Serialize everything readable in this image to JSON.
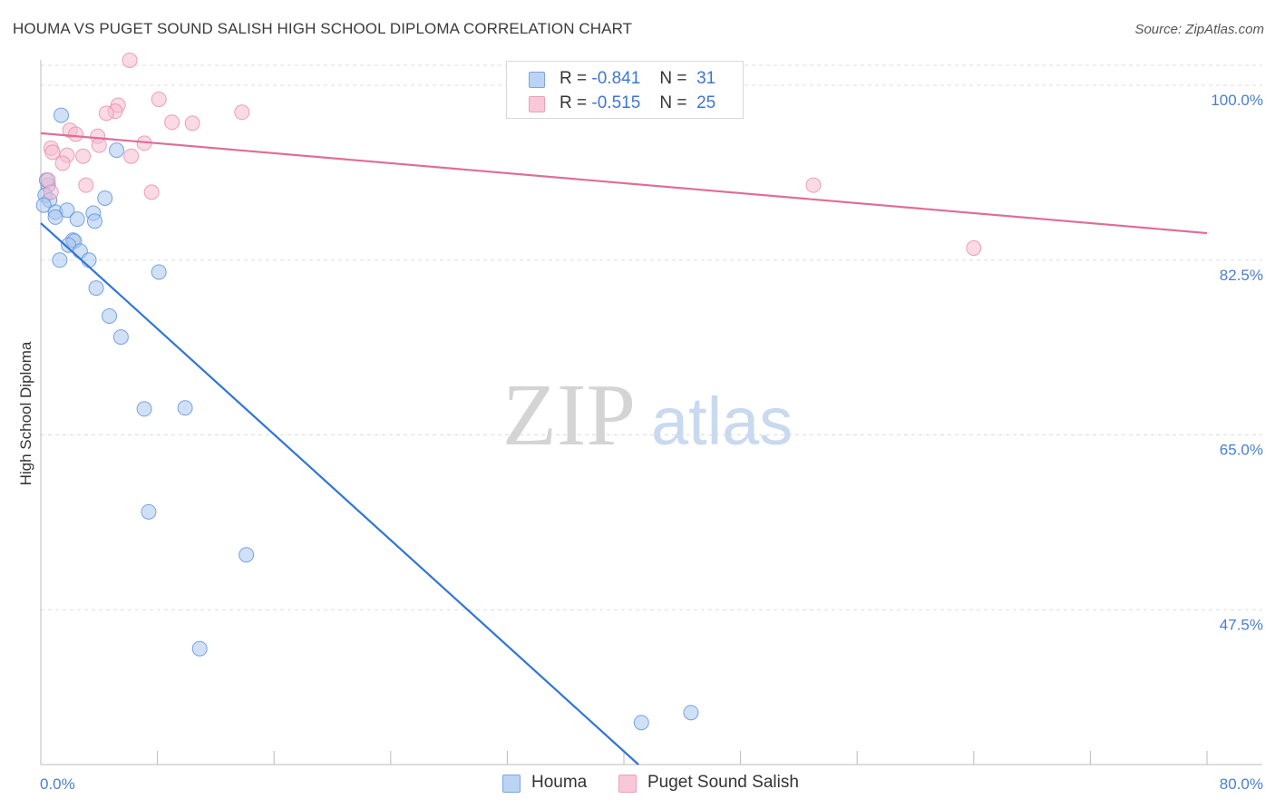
{
  "header": {
    "title": "HOUMA VS PUGET SOUND SALISH HIGH SCHOOL DIPLOMA CORRELATION CHART",
    "source": "Source: ZipAtlas.com"
  },
  "watermark": {
    "zip": "ZIP",
    "atlas": "atlas"
  },
  "legend": {
    "houma": {
      "r_label": "R =",
      "r_value": "-0.841",
      "n_label": "N =",
      "n_value": "31"
    },
    "puget": {
      "r_label": "R =",
      "r_value": "-0.515",
      "n_label": "N =",
      "n_value": "25"
    }
  },
  "bottom_legend": {
    "houma": "Houma",
    "puget": "Puget Sound Salish"
  },
  "colors": {
    "houma_fill": "#aac8f0",
    "houma_stroke": "#5b8fd8",
    "houma_line": "#2f76d6",
    "puget_fill": "#f6bcd0",
    "puget_stroke": "#e88aaa",
    "puget_line": "#e06d97",
    "grid": "#dddddd",
    "tick_text": "#4a7fcf"
  },
  "chart_data": {
    "type": "scatter",
    "title": "HOUMA VS PUGET SOUND SALISH HIGH SCHOOL DIPLOMA CORRELATION CHART",
    "xlabel": "",
    "ylabel": "High School Diploma",
    "xlim": [
      0,
      80
    ],
    "ylim": [
      32,
      102
    ],
    "x_tick_labels": [
      "0.0%",
      "80.0%"
    ],
    "y_ticks": [
      100.0,
      82.5,
      65.0,
      47.5
    ],
    "y_tick_labels": [
      "100.0%",
      "82.5%",
      "65.0%",
      "47.5%"
    ],
    "legend_position": "top-center",
    "series": [
      {
        "name": "Houma",
        "r": -0.841,
        "n": 31,
        "points": [
          [
            1.4,
            97.0
          ],
          [
            0.5,
            90.0
          ],
          [
            0.3,
            89.0
          ],
          [
            0.6,
            88.5
          ],
          [
            0.2,
            88.0
          ],
          [
            1.0,
            87.3
          ],
          [
            1.8,
            87.5
          ],
          [
            3.6,
            87.2
          ],
          [
            1.0,
            86.8
          ],
          [
            2.5,
            86.6
          ],
          [
            5.2,
            93.5
          ],
          [
            3.7,
            86.4
          ],
          [
            4.4,
            88.7
          ],
          [
            2.2,
            84.5
          ],
          [
            2.3,
            84.4
          ],
          [
            1.9,
            84.0
          ],
          [
            2.7,
            83.4
          ],
          [
            1.3,
            82.5
          ],
          [
            3.3,
            82.5
          ],
          [
            8.1,
            81.3
          ],
          [
            3.8,
            79.7
          ],
          [
            4.7,
            76.9
          ],
          [
            5.5,
            74.8
          ],
          [
            7.1,
            67.6
          ],
          [
            9.9,
            67.7
          ],
          [
            7.4,
            57.3
          ],
          [
            14.1,
            53.0
          ],
          [
            10.9,
            43.6
          ],
          [
            41.2,
            36.2
          ],
          [
            44.6,
            37.2
          ],
          [
            0.4,
            90.5
          ]
        ],
        "trendline": {
          "x": [
            0,
            41.0
          ],
          "y": [
            86.2,
            32.0
          ]
        }
      },
      {
        "name": "Puget Sound Salish",
        "r": -0.515,
        "n": 25,
        "points": [
          [
            6.1,
            102.5
          ],
          [
            8.1,
            98.6
          ],
          [
            5.3,
            98.0
          ],
          [
            5.1,
            97.4
          ],
          [
            4.5,
            97.2
          ],
          [
            13.8,
            97.3
          ],
          [
            9.0,
            96.3
          ],
          [
            10.4,
            96.2
          ],
          [
            2.0,
            95.5
          ],
          [
            2.4,
            95.1
          ],
          [
            3.9,
            94.9
          ],
          [
            7.1,
            94.2
          ],
          [
            4.0,
            94.0
          ],
          [
            0.7,
            93.7
          ],
          [
            0.8,
            93.3
          ],
          [
            1.8,
            93.0
          ],
          [
            2.9,
            92.9
          ],
          [
            6.2,
            92.9
          ],
          [
            1.5,
            92.2
          ],
          [
            0.5,
            90.5
          ],
          [
            0.7,
            89.3
          ],
          [
            3.1,
            90.0
          ],
          [
            7.6,
            89.3
          ],
          [
            53.0,
            90.0
          ],
          [
            64.0,
            83.7
          ]
        ],
        "trendline": {
          "x": [
            0,
            80
          ],
          "y": [
            95.2,
            85.2
          ]
        }
      }
    ]
  }
}
